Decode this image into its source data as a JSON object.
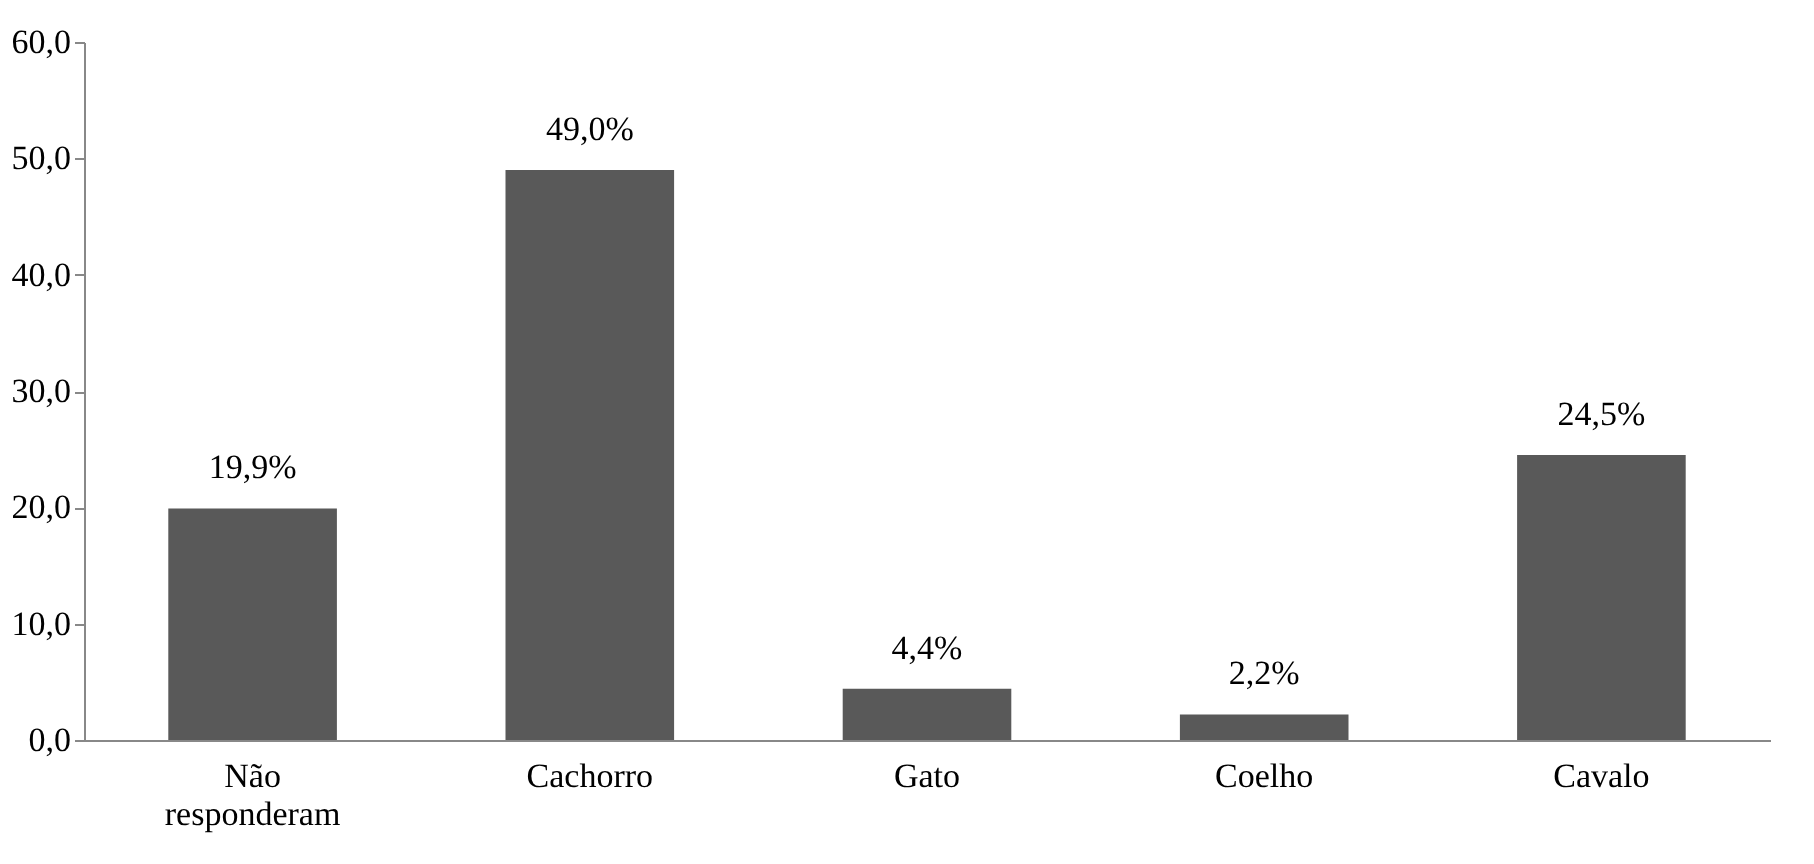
{
  "chart_data": {
    "type": "bar",
    "categories": [
      "Não responderam",
      "Cachorro",
      "Gato",
      "Coelho",
      "Cavalo"
    ],
    "values": [
      19.9,
      49.0,
      4.4,
      2.2,
      24.5
    ],
    "value_labels": [
      "19,9%",
      "49,0%",
      "4,4%",
      "2,2%",
      "24,5%"
    ],
    "color": "#595959",
    "ylim": [
      0,
      60
    ],
    "yticks": [
      {
        "value": 0,
        "label": "0,0"
      },
      {
        "value": 10,
        "label": "10,0"
      },
      {
        "value": 20,
        "label": "20,0"
      },
      {
        "value": 30,
        "label": "30,0"
      },
      {
        "value": 40,
        "label": "40,0"
      },
      {
        "value": 50,
        "label": "50,0"
      },
      {
        "value": 60,
        "label": "60,0"
      }
    ],
    "grid": false
  }
}
